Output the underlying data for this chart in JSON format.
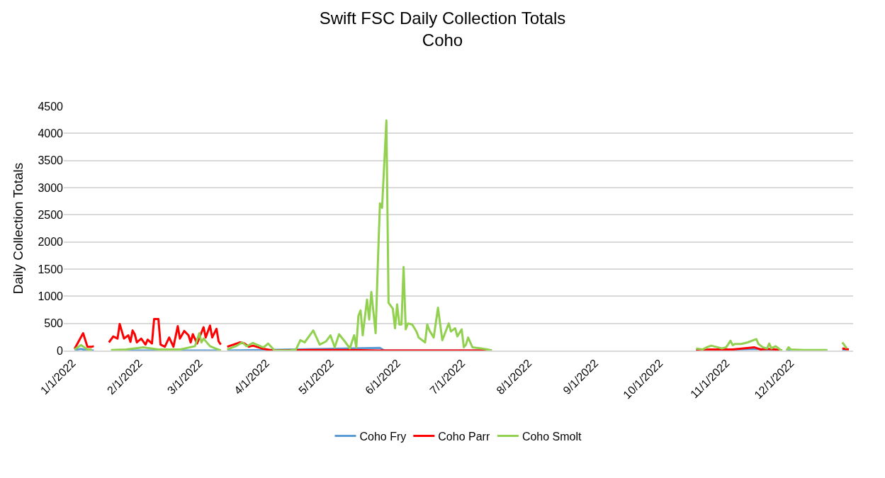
{
  "chart_data": {
    "type": "line",
    "title": "Swift FSC Daily Collection Totals",
    "subtitle": "Coho",
    "ylabel": "Daily Collection Totals",
    "xlim": [
      "2021-12-28",
      "2022-12-30"
    ],
    "xticks": [
      {
        "value": "2022-01-01",
        "label": "1/1/2022"
      },
      {
        "value": "2022-02-01",
        "label": "2/1/2022"
      },
      {
        "value": "2022-03-01",
        "label": "3/1/2022"
      },
      {
        "value": "2022-04-01",
        "label": "4/1/2022"
      },
      {
        "value": "2022-05-01",
        "label": "5/1/2022"
      },
      {
        "value": "2022-06-01",
        "label": "6/1/2022"
      },
      {
        "value": "2022-07-01",
        "label": "7/1/2022"
      },
      {
        "value": "2022-08-01",
        "label": "8/1/2022"
      },
      {
        "value": "2022-09-01",
        "label": "9/1/2022"
      },
      {
        "value": "2022-10-01",
        "label": "10/1/2022"
      },
      {
        "value": "2022-11-01",
        "label": "11/1/2022"
      },
      {
        "value": "2022-12-01",
        "label": "12/1/2022"
      }
    ],
    "ylim": [
      0,
      4500
    ],
    "yticks": [
      0,
      500,
      1000,
      1500,
      2000,
      2500,
      3000,
      3500,
      4000,
      4500
    ],
    "grid": "y",
    "legend": "bottom",
    "marker": "none",
    "line_style": "solid",
    "series": [
      {
        "name": "Coho Fry",
        "color": "#5b9bd5",
        "x": [
          "2022-01-02",
          "2022-01-05",
          "2022-01-08",
          "2022-01-11",
          "2022-01-13",
          "2022-01-19",
          "2022-02-10",
          "2022-03-11",
          "2022-03-13",
          "2022-03-14",
          "2022-04-01",
          "2022-05-24",
          "2022-05-26",
          "2022-07-15",
          "2022-07-17",
          "2022-10-18",
          "2022-11-15",
          "2022-11-27",
          "2022-11-28",
          "2022-11-29",
          "2022-12-18",
          "2022-12-20",
          "2022-12-25",
          "2022-12-27"
        ],
        "values": [
          10,
          30,
          0,
          0,
          null,
          0,
          0,
          0,
          null,
          0,
          10,
          50,
          0,
          0,
          null,
          0,
          30,
          0,
          null,
          0,
          0,
          null,
          20,
          0
        ]
      },
      {
        "name": "Coho Parr",
        "color": "#ff0000",
        "x": [
          "2022-01-02",
          "2022-01-06",
          "2022-01-08",
          "2022-01-10",
          "2022-01-11",
          "2022-01-13",
          "2022-01-18",
          "2022-01-20",
          "2022-01-22",
          "2022-01-23",
          "2022-01-25",
          "2022-01-27",
          "2022-01-28",
          "2022-01-29",
          "2022-01-30",
          "2022-01-31",
          "2022-02-02",
          "2022-02-04",
          "2022-02-05",
          "2022-02-07",
          "2022-02-08",
          "2022-02-10",
          "2022-02-11",
          "2022-02-13",
          "2022-02-15",
          "2022-02-17",
          "2022-02-19",
          "2022-02-20",
          "2022-02-22",
          "2022-02-24",
          "2022-02-25",
          "2022-02-26",
          "2022-02-28",
          "2022-03-03",
          "2022-03-04",
          "2022-03-06",
          "2022-03-07",
          "2022-03-09",
          "2022-03-10",
          "2022-03-11",
          "2022-03-13",
          "2022-03-14",
          "2022-03-20",
          "2022-03-22",
          "2022-03-24",
          "2022-03-26",
          "2022-03-30",
          "2022-04-04",
          "2022-04-21",
          "2022-05-11",
          "2022-05-23",
          "2022-07-15",
          "2022-07-17",
          "2022-10-18",
          "2022-10-24",
          "2022-11-04",
          "2022-11-14",
          "2022-11-17",
          "2022-11-20",
          "2022-11-24",
          "2022-11-27",
          "2022-11-28",
          "2022-12-25",
          "2022-12-28"
        ],
        "values": [
          30,
          320,
          70,
          70,
          80,
          null,
          150,
          260,
          220,
          490,
          220,
          280,
          160,
          370,
          300,
          150,
          220,
          110,
          200,
          130,
          580,
          580,
          110,
          70,
          240,
          70,
          450,
          220,
          360,
          280,
          150,
          300,
          130,
          430,
          240,
          460,
          240,
          400,
          170,
          110,
          null,
          70,
          150,
          130,
          70,
          90,
          40,
          0,
          10,
          10,
          0,
          0,
          null,
          0,
          20,
          20,
          60,
          20,
          30,
          20,
          0,
          null,
          40,
          20
        ]
      },
      {
        "name": "Coho Smolt",
        "color": "#92d050",
        "x": [
          "2022-01-02",
          "2022-01-05",
          "2022-01-08",
          "2022-01-10",
          "2022-01-13",
          "2022-01-19",
          "2022-01-26",
          "2022-02-03",
          "2022-02-10",
          "2022-02-20",
          "2022-02-27",
          "2022-03-01",
          "2022-03-02",
          "2022-03-03",
          "2022-03-06",
          "2022-03-09",
          "2022-03-11",
          "2022-03-13",
          "2022-03-14",
          "2022-03-18",
          "2022-03-21",
          "2022-03-23",
          "2022-03-26",
          "2022-03-30",
          "2022-03-31",
          "2022-04-02",
          "2022-04-05",
          "2022-04-12",
          "2022-04-15",
          "2022-04-17",
          "2022-04-19",
          "2022-04-23",
          "2022-04-26",
          "2022-04-29",
          "2022-05-01",
          "2022-05-03",
          "2022-05-05",
          "2022-05-08",
          "2022-05-10",
          "2022-05-12",
          "2022-05-13",
          "2022-05-14",
          "2022-05-15",
          "2022-05-16",
          "2022-05-18",
          "2022-05-19",
          "2022-05-20",
          "2022-05-22",
          "2022-05-23",
          "2022-05-24",
          "2022-05-25",
          "2022-05-27",
          "2022-05-28",
          "2022-05-30",
          "2022-05-31",
          "2022-06-01",
          "2022-06-02",
          "2022-06-03",
          "2022-06-04",
          "2022-06-05",
          "2022-06-06",
          "2022-06-08",
          "2022-06-10",
          "2022-06-11",
          "2022-06-14",
          "2022-06-15",
          "2022-06-16",
          "2022-06-18",
          "2022-06-20",
          "2022-06-22",
          "2022-06-25",
          "2022-06-26",
          "2022-06-28",
          "2022-06-29",
          "2022-07-01",
          "2022-07-02",
          "2022-07-03",
          "2022-07-04",
          "2022-07-06",
          "2022-07-10",
          "2022-07-13",
          "2022-07-15",
          "2022-07-17",
          "2022-10-18",
          "2022-10-21",
          "2022-10-23",
          "2022-10-25",
          "2022-10-28",
          "2022-10-30",
          "2022-11-01",
          "2022-11-03",
          "2022-11-04",
          "2022-11-05",
          "2022-11-08",
          "2022-11-11",
          "2022-11-13",
          "2022-11-15",
          "2022-11-16",
          "2022-11-18",
          "2022-11-20",
          "2022-11-21",
          "2022-11-22",
          "2022-11-24",
          "2022-11-26",
          "2022-11-27",
          "2022-11-28",
          "2022-11-29",
          "2022-11-30",
          "2022-12-01",
          "2022-12-07",
          "2022-12-18",
          "2022-12-20",
          "2022-12-25",
          "2022-12-27"
        ],
        "values": [
          20,
          100,
          20,
          20,
          null,
          10,
          20,
          60,
          20,
          20,
          80,
          320,
          150,
          220,
          80,
          30,
          0,
          null,
          20,
          80,
          150,
          80,
          140,
          70,
          60,
          130,
          0,
          0,
          20,
          190,
          150,
          370,
          110,
          170,
          280,
          60,
          300,
          150,
          40,
          280,
          60,
          640,
          740,
          280,
          940,
          570,
          1080,
          320,
          1570,
          2710,
          2630,
          4240,
          880,
          770,
          410,
          850,
          480,
          480,
          1540,
          390,
          500,
          480,
          350,
          240,
          150,
          480,
          370,
          240,
          790,
          190,
          500,
          350,
          410,
          260,
          390,
          60,
          110,
          240,
          60,
          40,
          20,
          0,
          null,
          40,
          20,
          60,
          90,
          60,
          40,
          60,
          180,
          100,
          120,
          120,
          150,
          180,
          210,
          120,
          60,
          40,
          130,
          40,
          80,
          20,
          0,
          null,
          0,
          60,
          20,
          10,
          10,
          null,
          150,
          40
        ]
      }
    ]
  }
}
